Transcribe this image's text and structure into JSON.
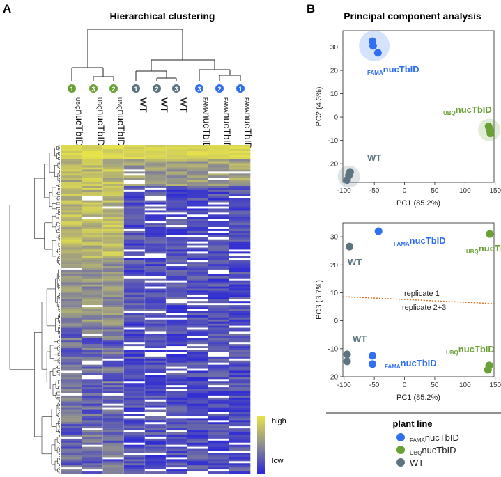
{
  "colors": {
    "fama": "#2f6ff0",
    "ubq": "#6aa136",
    "wt": "#5c7480",
    "high": "#e6e24a",
    "mid": "#8f8f8f",
    "low": "#2a26d8",
    "divider": "#e06b14"
  },
  "panel_a": {
    "label": "A",
    "title": "Hierarchical clustering",
    "legend": {
      "high": "high",
      "low": "low"
    }
  },
  "panel_b": {
    "label": "B",
    "title": "Principal component analysis"
  },
  "samples": [
    {
      "rep": "1",
      "prefix": "UBQ",
      "name": "nucTbID",
      "group": "ubq"
    },
    {
      "rep": "3",
      "prefix": "UBQ",
      "name": "nucTbID",
      "group": "ubq"
    },
    {
      "rep": "2",
      "prefix": "UBQ",
      "name": "nucTbID",
      "group": "ubq"
    },
    {
      "rep": "1",
      "prefix": "",
      "name": "WT",
      "group": "wt"
    },
    {
      "rep": "2",
      "prefix": "",
      "name": "WT",
      "group": "wt"
    },
    {
      "rep": "3",
      "prefix": "",
      "name": "WT",
      "group": "wt"
    },
    {
      "rep": "3",
      "prefix": "FAMA",
      "name": "nucTbID",
      "group": "fama"
    },
    {
      "rep": "2",
      "prefix": "FAMA",
      "name": "nucTbID",
      "group": "fama"
    },
    {
      "rep": "1",
      "prefix": "FAMA",
      "name": "nucTbID",
      "group": "fama"
    }
  ],
  "legend": {
    "title": "plant line",
    "items": [
      {
        "prefix": "FAMA",
        "name": "nucTbID",
        "group": "fama"
      },
      {
        "prefix": "UBQ",
        "name": "nucTbID",
        "group": "ubq"
      },
      {
        "prefix": "",
        "name": "WT",
        "group": "wt"
      }
    ]
  },
  "chart_data": [
    {
      "type": "heatmap",
      "title": "Hierarchical clustering",
      "columns": [
        "UBQnucTbID 1",
        "UBQnucTbID 3",
        "UBQnucTbID 2",
        "WT 1",
        "WT 2",
        "WT 3",
        "FAMAnucTbID 3",
        "FAMAnucTbID 2",
        "FAMAnucTbID 1"
      ],
      "color_scale": [
        "low",
        "high"
      ]
    },
    {
      "type": "scatter",
      "title": "Principal component analysis",
      "xlabel": "PC1 (85.2%)",
      "ylabel": "PC2 (4.3%)",
      "xlim": [
        -102,
        148
      ],
      "ylim": [
        -28,
        37
      ],
      "xticks": [
        -100,
        -50,
        0,
        50,
        100,
        150
      ],
      "yticks": [
        -20,
        -10,
        0,
        10,
        20,
        30
      ],
      "series": [
        {
          "name": "FAMAnucTbID",
          "group": "fama",
          "label_prefix": "FAMA",
          "label_name": "nucTbID",
          "points": [
            [
              -53,
              32.5
            ],
            [
              -52,
              30.5
            ],
            [
              -44,
              27.5
            ]
          ],
          "highlight": [
            -50,
            30.5
          ]
        },
        {
          "name": "UBQnucTbID",
          "group": "ubq",
          "label_prefix": "UBQ",
          "label_name": "nucTbID",
          "points": [
            [
              139,
              -4
            ],
            [
              141,
              -5.5
            ],
            [
              142,
              -7
            ]
          ],
          "highlight": [
            140,
            -5.5
          ]
        },
        {
          "name": "WT",
          "group": "wt",
          "label_prefix": "",
          "label_name": "WT",
          "points": [
            [
              -90,
              -23.5
            ],
            [
              -92,
              -25
            ],
            [
              -95,
              -27
            ]
          ],
          "highlight": [
            -92,
            -25.5
          ]
        }
      ]
    },
    {
      "type": "scatter",
      "xlabel": "PC1 (85.2%)",
      "ylabel": "PC3 (3.7%)",
      "xlim": [
        -102,
        148
      ],
      "ylim": [
        -20,
        35
      ],
      "xticks": [
        -100,
        -50,
        0,
        50,
        100,
        150
      ],
      "yticks": [
        -20,
        -10,
        0,
        10,
        20,
        30
      ],
      "series": [
        {
          "name": "FAMAnucTbID",
          "group": "fama",
          "points": [
            [
              -43,
              32
            ],
            [
              -53,
              -12.5
            ],
            [
              -53,
              -15.5
            ]
          ]
        },
        {
          "name": "UBQnucTbID",
          "group": "ubq",
          "points": [
            [
              141,
              31
            ],
            [
              140,
              -16
            ],
            [
              138,
              -17.5
            ]
          ]
        },
        {
          "name": "WT",
          "group": "wt",
          "points": [
            [
              -91,
              26.5
            ],
            [
              -95,
              -12
            ],
            [
              -95,
              -14.5
            ]
          ]
        }
      ],
      "annotations": [
        {
          "text": "replicate 1"
        },
        {
          "text": "replicate 2+3"
        }
      ]
    }
  ]
}
